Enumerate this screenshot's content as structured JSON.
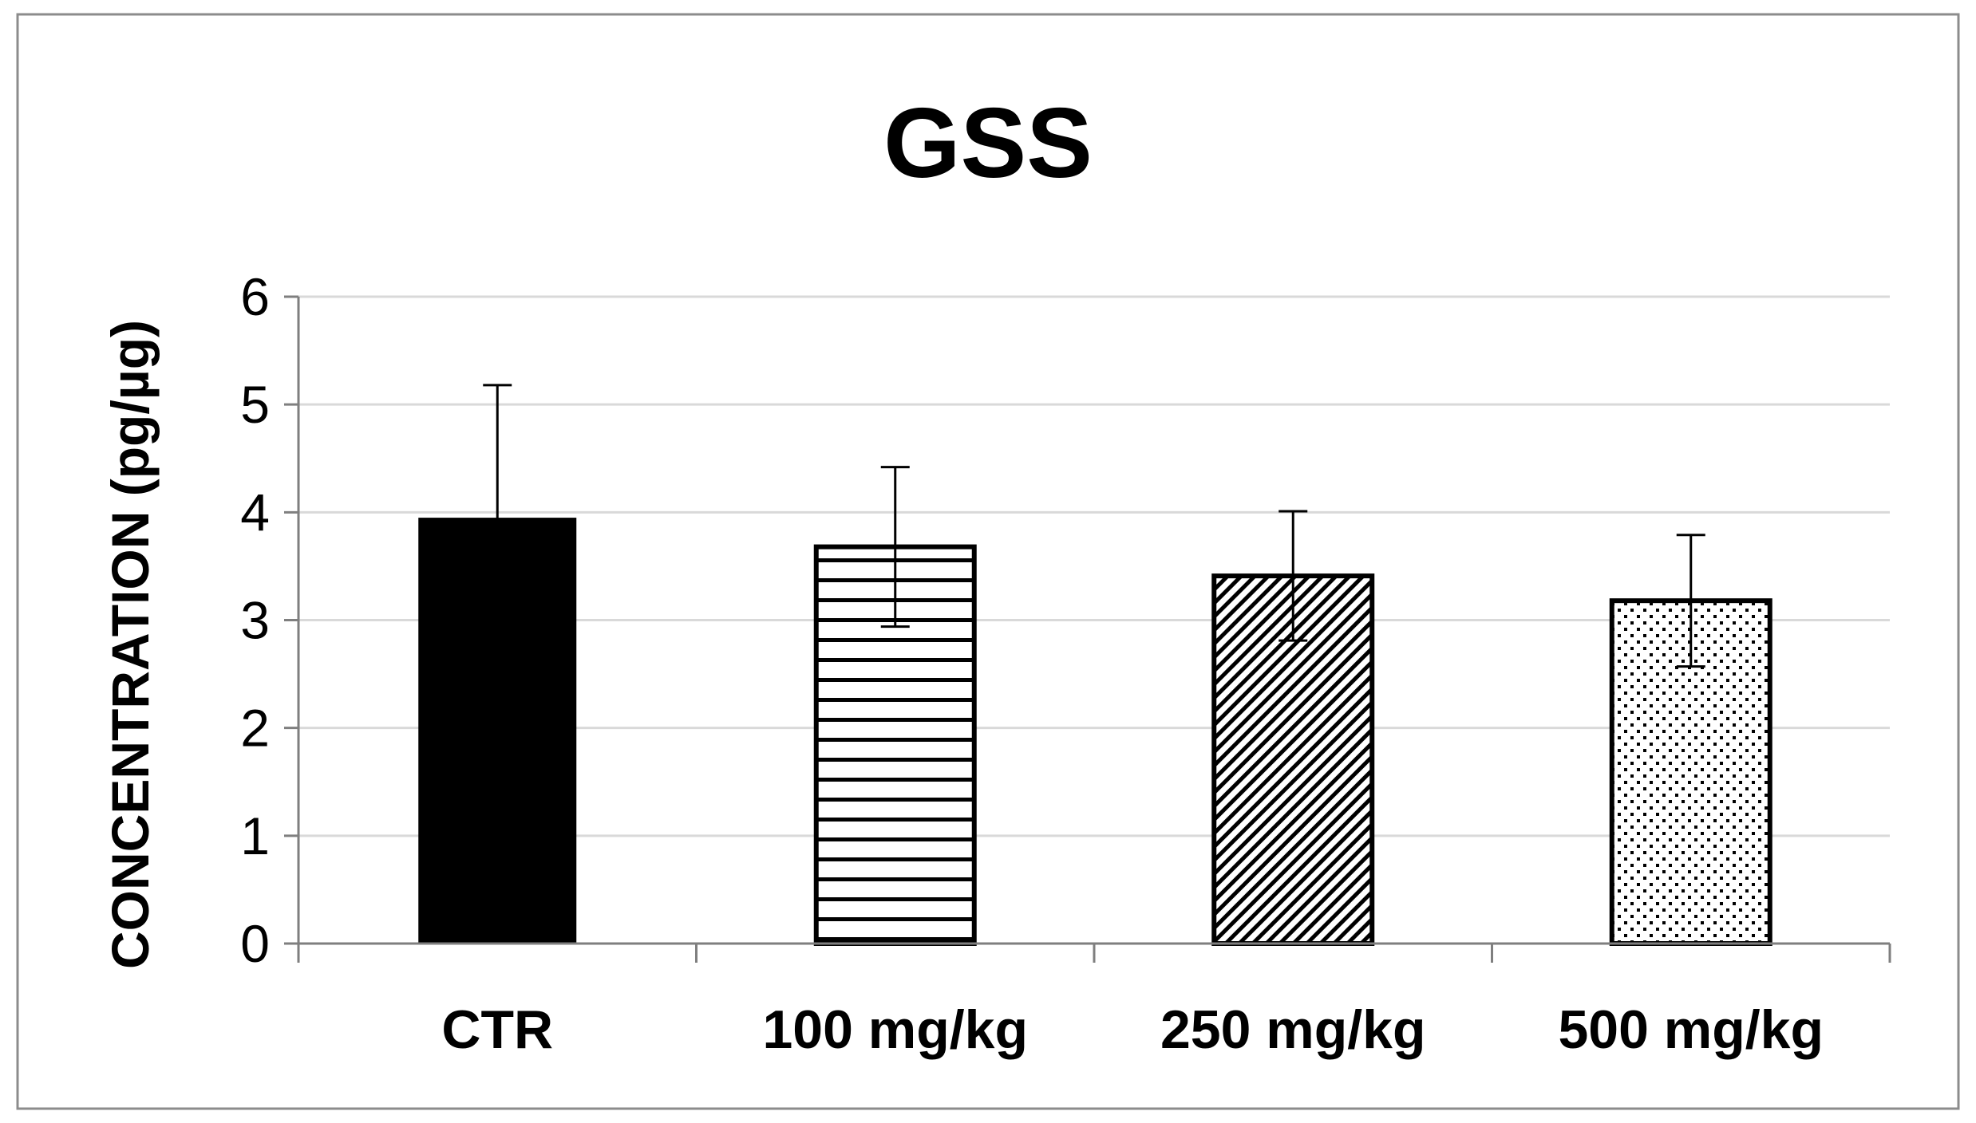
{
  "chart_data": {
    "type": "bar",
    "title": "GSS",
    "xlabel": "",
    "ylabel": "CONCENTRATION (pg/µg)",
    "ylim": [
      0,
      6
    ],
    "yticks": [
      "0",
      "1",
      "2",
      "3",
      "4",
      "5",
      "6"
    ],
    "grid": true,
    "categories": [
      "CTR",
      "100 mg/kg",
      "250 mg/kg",
      "500 mg/kg"
    ],
    "values": [
      3.95,
      3.68,
      3.41,
      3.18
    ],
    "errors": [
      1.23,
      0.74,
      0.6,
      0.61
    ],
    "patterns": [
      "solid",
      "horizontal-lines",
      "diagonal-hatch",
      "dots"
    ],
    "colors": {
      "bar_fill": "#000000",
      "bar_stroke": "#000000",
      "grid": "#d9d9d9",
      "axis": "#7f7f7f",
      "frame": "#8c8c8c"
    }
  }
}
